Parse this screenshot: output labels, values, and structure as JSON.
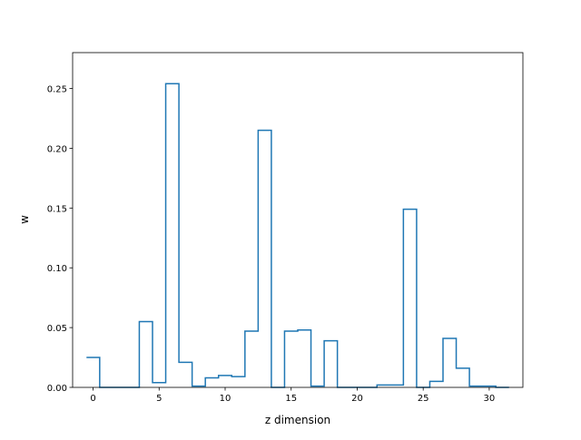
{
  "chart_data": {
    "type": "step",
    "title": "",
    "xlabel": "z dimension",
    "ylabel": "w",
    "xlim": [
      -1.55,
      32.55
    ],
    "ylim": [
      0,
      0.28
    ],
    "xticks": [
      0,
      5,
      10,
      15,
      20,
      25,
      30
    ],
    "xtick_labels": [
      "0",
      "5",
      "10",
      "15",
      "20",
      "25",
      "30"
    ],
    "yticks": [
      0,
      0.05,
      0.1,
      0.15,
      0.2,
      0.25
    ],
    "ytick_labels": [
      "0.00",
      "0.05",
      "0.10",
      "0.15",
      "0.20",
      "0.25"
    ],
    "grid": false,
    "legend": null,
    "series": [
      {
        "step": "mid",
        "color": "#1f77b4",
        "x": [
          0,
          1,
          2,
          3,
          4,
          5,
          6,
          7,
          8,
          9,
          10,
          11,
          12,
          13,
          14,
          15,
          16,
          17,
          18,
          19,
          20,
          21,
          22,
          23,
          24,
          25,
          26,
          27,
          28,
          29,
          30,
          31
        ],
        "values": [
          0.025,
          0.0,
          0.0,
          0.0,
          0.055,
          0.004,
          0.254,
          0.021,
          0.001,
          0.008,
          0.01,
          0.009,
          0.047,
          0.215,
          0.0,
          0.047,
          0.048,
          0.001,
          0.039,
          0.0,
          0.0,
          0.0,
          0.002,
          0.002,
          0.149,
          0.0,
          0.005,
          0.041,
          0.016,
          0.001,
          0.001,
          0.0
        ]
      }
    ]
  }
}
